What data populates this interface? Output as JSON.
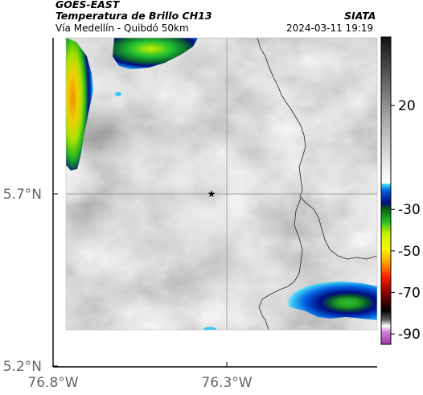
{
  "header": {
    "satellite": "GOES-EAST",
    "product": "Temperatura de Brillo CH13",
    "location": "Vía Medellín - Quibdó 50km",
    "agency": "SIATA",
    "timestamp": "2024-03-11 19:19"
  },
  "axes": {
    "x_ticks": [
      {
        "label": "76.8°W",
        "lon": -76.8
      },
      {
        "label": "76.3°W",
        "lon": -76.3
      }
    ],
    "y_ticks": [
      {
        "label": "5.7°N",
        "lat": 5.7
      },
      {
        "label": "5.2°N",
        "lat": 5.2
      }
    ]
  },
  "map": {
    "marker": "star-icon",
    "marker_lon": -76.345,
    "marker_lat": 5.7,
    "gridlines": true
  },
  "colorbar": {
    "ticks": [
      {
        "label": "20",
        "value": 20
      },
      {
        "label": "-30",
        "value": -30
      },
      {
        "label": "-50",
        "value": -50
      },
      {
        "label": "-70",
        "value": -70
      },
      {
        "label": "-90",
        "value": -90
      }
    ],
    "range": [
      -95,
      53
    ]
  },
  "colors": {
    "cold_cloud_blue": "#0048c8",
    "green": "#20c020",
    "yellow": "#f0f000",
    "orange": "#f0a000"
  }
}
